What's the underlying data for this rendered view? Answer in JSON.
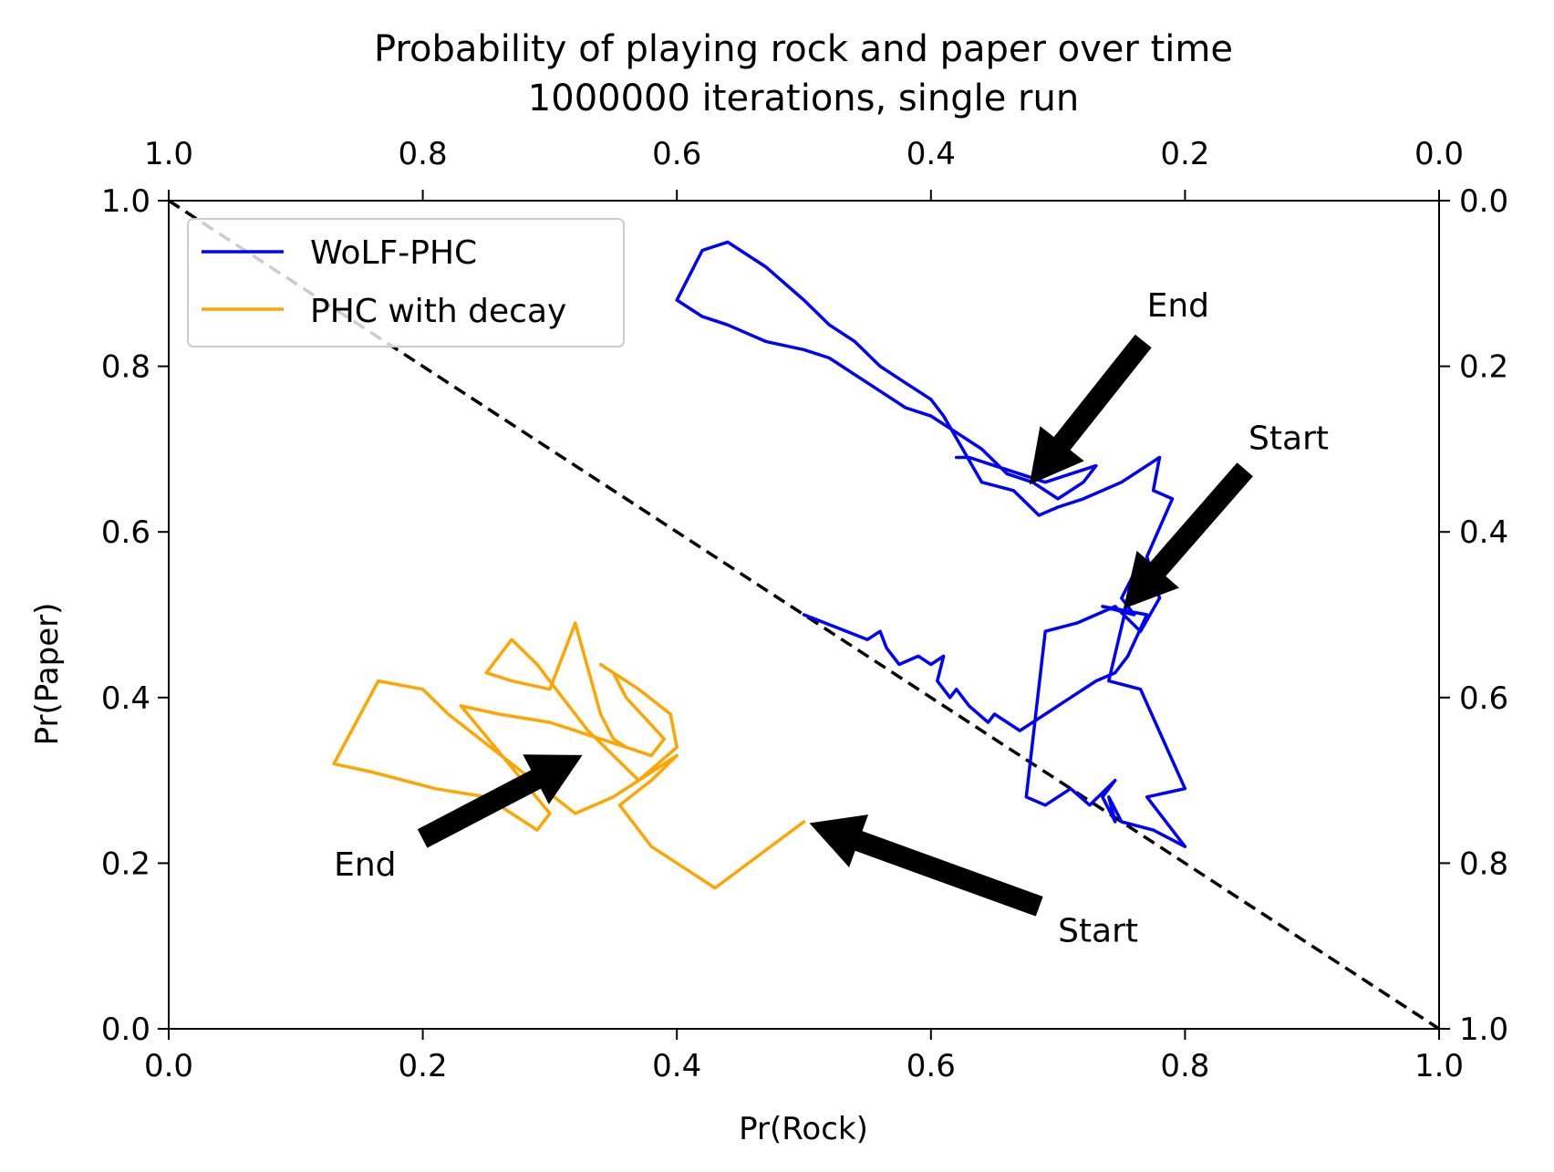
{
  "chart_data": {
    "type": "line",
    "title": "Probability of playing rock and paper over time",
    "subtitle": "1000000 iterations, single run",
    "xlabel": "Pr(Rock)",
    "ylabel": "Pr(Paper)",
    "xlim": [
      0,
      1
    ],
    "ylim": [
      0,
      1
    ],
    "x_ticks": [
      "0.0",
      "0.2",
      "0.4",
      "0.6",
      "0.8",
      "1.0"
    ],
    "y_ticks": [
      "0.0",
      "0.2",
      "0.4",
      "0.6",
      "0.8",
      "1.0"
    ],
    "top_ticks": [
      "1.0",
      "0.8",
      "0.6",
      "0.4",
      "0.2",
      "0.0"
    ],
    "right_ticks": [
      "1.0",
      "0.8",
      "0.6",
      "0.4",
      "0.2",
      "0.0"
    ],
    "grid": false,
    "legend_position": "top-left",
    "reference_line": {
      "style": "dashed",
      "color": "#000000",
      "x": [
        0,
        1
      ],
      "y": [
        1,
        0
      ]
    },
    "series": [
      {
        "name": "WoLF-PHC",
        "color": "#0000ff",
        "x": [
          0.5,
          0.55,
          0.56,
          0.565,
          0.575,
          0.59,
          0.6,
          0.61,
          0.605,
          0.615,
          0.62,
          0.63,
          0.645,
          0.65,
          0.66,
          0.67,
          0.69,
          0.71,
          0.73,
          0.745,
          0.755,
          0.77,
          0.735,
          0.76,
          0.75,
          0.76,
          0.74,
          0.765,
          0.8,
          0.77,
          0.8,
          0.775,
          0.75,
          0.74,
          0.745,
          0.735,
          0.745,
          0.725,
          0.71,
          0.69,
          0.675,
          0.69,
          0.715,
          0.745,
          0.765,
          0.78,
          0.77,
          0.79,
          0.775,
          0.78,
          0.75,
          0.72,
          0.7,
          0.685,
          0.665,
          0.64,
          0.625,
          0.61,
          0.6,
          0.58,
          0.56,
          0.54,
          0.52,
          0.5,
          0.47,
          0.44,
          0.42,
          0.4,
          0.42,
          0.44,
          0.455,
          0.47,
          0.5,
          0.52,
          0.54,
          0.56,
          0.58,
          0.6,
          0.62,
          0.64,
          0.66,
          0.68,
          0.7,
          0.72,
          0.73,
          0.71,
          0.69,
          0.67,
          0.65,
          0.63,
          0.62
        ],
        "y": [
          0.5,
          0.47,
          0.48,
          0.46,
          0.44,
          0.45,
          0.44,
          0.45,
          0.42,
          0.4,
          0.41,
          0.39,
          0.37,
          0.38,
          0.37,
          0.36,
          0.38,
          0.4,
          0.42,
          0.43,
          0.45,
          0.5,
          0.51,
          0.5,
          0.52,
          0.55,
          0.42,
          0.41,
          0.29,
          0.28,
          0.22,
          0.24,
          0.25,
          0.28,
          0.25,
          0.28,
          0.3,
          0.27,
          0.29,
          0.27,
          0.28,
          0.48,
          0.49,
          0.51,
          0.48,
          0.52,
          0.57,
          0.64,
          0.65,
          0.69,
          0.66,
          0.64,
          0.63,
          0.62,
          0.65,
          0.66,
          0.7,
          0.74,
          0.76,
          0.78,
          0.8,
          0.83,
          0.85,
          0.88,
          0.92,
          0.95,
          0.94,
          0.88,
          0.86,
          0.85,
          0.84,
          0.83,
          0.82,
          0.81,
          0.79,
          0.77,
          0.75,
          0.74,
          0.72,
          0.7,
          0.67,
          0.66,
          0.64,
          0.66,
          0.68,
          0.67,
          0.66,
          0.67,
          0.68,
          0.69,
          0.69
        ]
      },
      {
        "name": "PHC with decay",
        "color": "#ffa500",
        "x": [
          0.5,
          0.43,
          0.38,
          0.36,
          0.355,
          0.38,
          0.4,
          0.35,
          0.32,
          0.27,
          0.22,
          0.2,
          0.165,
          0.13,
          0.16,
          0.21,
          0.25,
          0.29,
          0.3,
          0.23,
          0.26,
          0.3,
          0.32,
          0.34,
          0.36,
          0.38,
          0.39,
          0.36,
          0.35,
          0.34,
          0.37,
          0.395,
          0.4,
          0.37,
          0.33,
          0.31,
          0.29,
          0.27,
          0.25,
          0.27,
          0.3,
          0.32,
          0.34,
          0.35,
          0.36
        ],
        "y": [
          0.25,
          0.17,
          0.22,
          0.26,
          0.27,
          0.3,
          0.33,
          0.28,
          0.26,
          0.32,
          0.38,
          0.41,
          0.42,
          0.32,
          0.31,
          0.29,
          0.28,
          0.24,
          0.26,
          0.39,
          0.38,
          0.37,
          0.36,
          0.35,
          0.34,
          0.33,
          0.35,
          0.4,
          0.43,
          0.44,
          0.41,
          0.38,
          0.34,
          0.3,
          0.36,
          0.4,
          0.44,
          0.47,
          0.43,
          0.42,
          0.41,
          0.49,
          0.38,
          0.35,
          0.34
        ]
      }
    ],
    "annotations": [
      {
        "text": "End",
        "x": 0.77,
        "y": 0.86,
        "arrow_to": [
          0.678,
          0.658
        ],
        "arrow_from": [
          0.767,
          0.83
        ]
      },
      {
        "text": "Start",
        "x": 0.85,
        "y": 0.7,
        "arrow_to": [
          0.752,
          0.508
        ],
        "arrow_from": [
          0.847,
          0.675
        ]
      },
      {
        "text": "End",
        "x": 0.13,
        "y": 0.185,
        "arrow_to": [
          0.325,
          0.33
        ],
        "arrow_from": [
          0.2,
          0.23
        ]
      },
      {
        "text": "Start",
        "x": 0.7,
        "y": 0.105,
        "arrow_to": [
          0.505,
          0.248
        ],
        "arrow_from": [
          0.685,
          0.148
        ]
      }
    ]
  }
}
